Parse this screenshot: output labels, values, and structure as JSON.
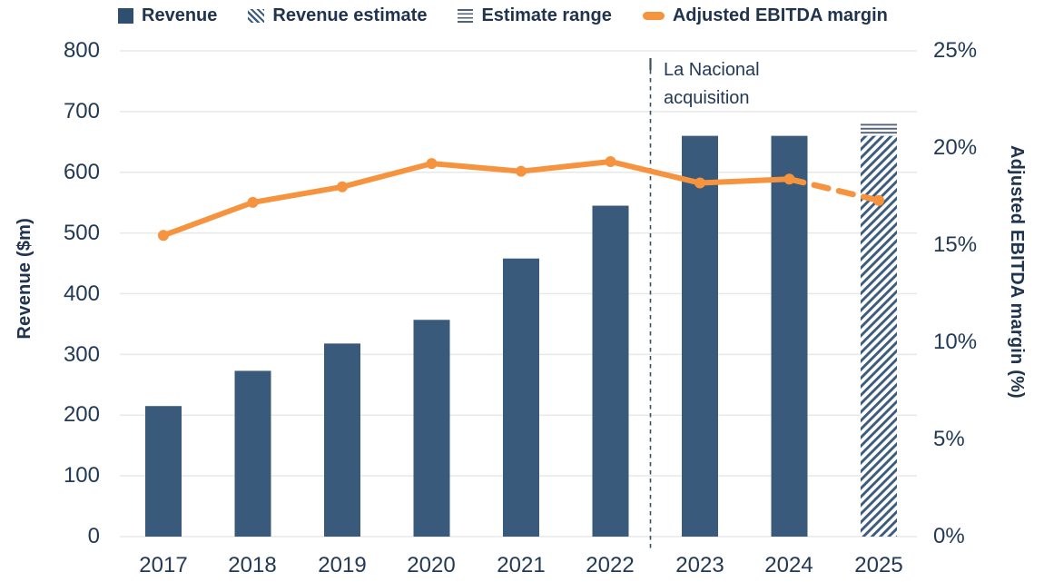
{
  "colors": {
    "bar": "#3a5a7b",
    "legend_square": "#2f4f71",
    "hatch": "#3c5c7e",
    "range_line": "#51607c",
    "orange": "#f6933f",
    "text": "#233a57",
    "grid": "#e8e8e8",
    "divider": "#3e4e63"
  },
  "legend": {
    "items": [
      {
        "label": "Revenue",
        "swatch": "solid-square-icon"
      },
      {
        "label": "Revenue estimate",
        "swatch": "diagonal-hatch-icon"
      },
      {
        "label": "Estimate range",
        "swatch": "horizontal-lines-icon"
      },
      {
        "label": "Adjusted EBITDA margin",
        "swatch": "orange-line-marker-icon"
      }
    ]
  },
  "chart_data": {
    "type": "combo-bar-line",
    "categories": [
      "2017",
      "2018",
      "2019",
      "2020",
      "2021",
      "2022",
      "2023",
      "2024",
      "2025"
    ],
    "series": [
      {
        "name": "Revenue",
        "type": "bar",
        "axis": "left",
        "values": [
          215,
          273,
          318,
          357,
          458,
          545,
          660,
          660,
          null
        ]
      },
      {
        "name": "Revenue estimate",
        "type": "bar",
        "style": "diagonal-hatch",
        "axis": "left",
        "values": [
          null,
          null,
          null,
          null,
          null,
          null,
          null,
          null,
          660
        ]
      },
      {
        "name": "Estimate range",
        "type": "range",
        "axis": "left",
        "category": "2025",
        "low": 660,
        "high": 680
      },
      {
        "name": "Adjusted EBITDA margin",
        "type": "line",
        "axis": "right",
        "values": [
          15.5,
          17.2,
          18.0,
          19.2,
          18.8,
          19.3,
          18.2,
          18.4,
          17.3
        ],
        "dashed_from_index": 7
      }
    ],
    "left_axis": {
      "label": "Revenue ($m)",
      "min": 0,
      "max": 800,
      "tick_step": 100,
      "ticks": [
        "800",
        "700",
        "600",
        "500",
        "400",
        "300",
        "200",
        "100",
        "0"
      ]
    },
    "right_axis": {
      "label": "Adjusted EBITDA margin (%)",
      "min": 0,
      "max": 25,
      "tick_step": 5,
      "ticks": [
        "25%",
        "20%",
        "15%",
        "10%",
        "5%",
        "0%"
      ]
    },
    "annotation": {
      "line1": "La Nacional",
      "line2": "acquisition",
      "between": [
        "2022",
        "2023"
      ]
    },
    "grid": true,
    "legend_position": "top"
  }
}
